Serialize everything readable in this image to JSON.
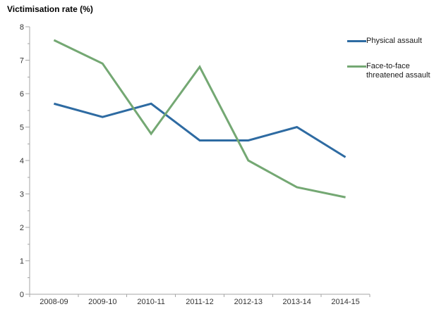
{
  "chart_data": {
    "type": "line",
    "ylabel": "Victimisation rate (%)",
    "xlabel": "",
    "categories": [
      "2008-09",
      "2009-10",
      "2010-11",
      "2011-12",
      "2012-13",
      "2013-14",
      "2014-15"
    ],
    "series": [
      {
        "name": "Physical assault",
        "color": "#2e6ba2",
        "values": [
          5.7,
          5.3,
          5.7,
          4.6,
          4.6,
          5.0,
          4.1
        ]
      },
      {
        "name": "Face-to-face threatened assault",
        "color": "#74a873",
        "values": [
          7.6,
          6.9,
          4.8,
          6.8,
          4.0,
          3.2,
          2.9
        ]
      }
    ],
    "ylim": [
      0,
      8
    ],
    "y_major_step": 1,
    "y_minor_step": 0.5,
    "grid": false,
    "legend_position": "top-right",
    "axis_color": "#a6a6a6",
    "tick_label_color": "#333333",
    "legend_text_color": "#1a1a1a"
  }
}
